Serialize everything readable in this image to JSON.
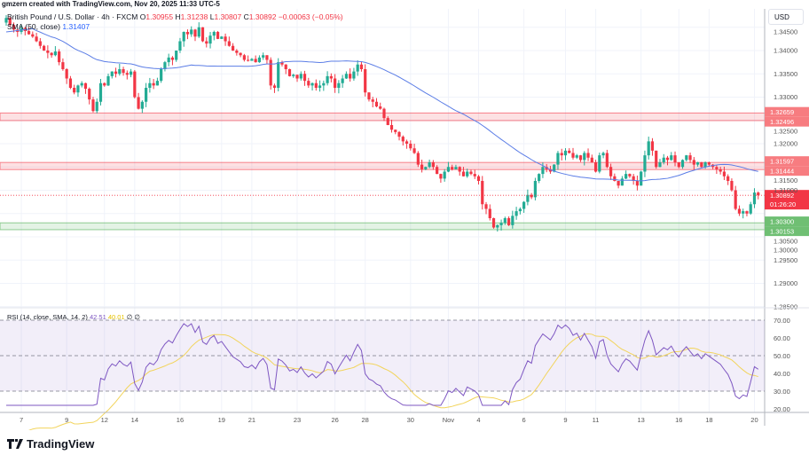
{
  "header": {
    "credit": "gmzern created with TradingView.com, Nov 20, 2025 11:33 UTC-5"
  },
  "legend": {
    "symbol": "British Pound / U.S. Dollar · 4h · FXCM",
    "o_label": "O",
    "o": "1.30955",
    "h_label": "H",
    "h": "1.31238",
    "l_label": "L",
    "l": "1.30807",
    "c_label": "C",
    "c": "1.30892",
    "change": "−0.00063 (−0.05%)"
  },
  "sma_legend": {
    "label": "SMA (50, close)",
    "value": "1.31407"
  },
  "rsi_legend": {
    "label": "RSI (14, close, SMA, 14, 2)",
    "rsi": "42.51",
    "sma": "40.01",
    "extra": "∅ ∅"
  },
  "currency": "USD",
  "footer": {
    "logo": "TradingView"
  },
  "chart_data": {
    "type": "candlestick",
    "symbol": "GBPUSD",
    "interval": "4h",
    "price_axis": {
      "ticks": [
        "1.34500",
        "1.34000",
        "1.33500",
        "1.33000",
        "1.32500",
        "1.32000",
        "1.31500",
        "1.31000",
        "1.30500",
        "1.30000",
        "1.29500",
        "1.29000",
        "1.28500"
      ],
      "range": [
        1.2835,
        1.3475
      ]
    },
    "x_labels": [
      "7",
      "9",
      "12",
      "14",
      "16",
      "19",
      "21",
      "23",
      "26",
      "28",
      "30",
      "Nov",
      "4",
      "6",
      "9",
      "11",
      "13",
      "16",
      "18",
      "20"
    ],
    "close": [
      1.347,
      1.3455,
      1.3445,
      1.344,
      1.3448,
      1.3442,
      1.3435,
      1.343,
      1.342,
      1.341,
      1.34,
      1.3395,
      1.339,
      1.3398,
      1.3375,
      1.336,
      1.334,
      1.332,
      1.331,
      1.3325,
      1.333,
      1.3318,
      1.3295,
      1.327,
      1.329,
      1.333,
      1.3325,
      1.3345,
      1.3355,
      1.335,
      1.336,
      1.3352,
      1.3348,
      1.3355,
      1.33,
      1.3275,
      1.329,
      1.332,
      1.333,
      1.3325,
      1.3335,
      1.336,
      1.3375,
      1.3385,
      1.338,
      1.34,
      1.342,
      1.344,
      1.3435,
      1.3445,
      1.343,
      1.345,
      1.342,
      1.3415,
      1.3432,
      1.344,
      1.3425,
      1.343,
      1.342,
      1.341,
      1.34,
      1.3395,
      1.339,
      1.338,
      1.3378,
      1.3382,
      1.3375,
      1.3385,
      1.339,
      1.338,
      1.3325,
      1.332,
      1.3375,
      1.337,
      1.336,
      1.3345,
      1.3348,
      1.334,
      1.335,
      1.3335,
      1.3325,
      1.333,
      1.332,
      1.3325,
      1.333,
      1.3345,
      1.334,
      1.332,
      1.333,
      1.334,
      1.335,
      1.334,
      1.3355,
      1.337,
      1.336,
      1.331,
      1.3295,
      1.329,
      1.328,
      1.3275,
      1.3255,
      1.324,
      1.323,
      1.3225,
      1.3215,
      1.3205,
      1.32,
      1.319,
      1.318,
      1.3155,
      1.3145,
      1.315,
      1.316,
      1.315,
      1.3135,
      1.3125,
      1.314,
      1.315,
      1.3145,
      1.315,
      1.314,
      1.313,
      1.314,
      1.3135,
      1.313,
      1.312,
      1.307,
      1.306,
      1.304,
      1.302,
      1.3025,
      1.303,
      1.304,
      1.3025,
      1.3045,
      1.3055,
      1.306,
      1.3075,
      1.309,
      1.3085,
      1.312,
      1.3135,
      1.315,
      1.3145,
      1.314,
      1.3155,
      1.318,
      1.3175,
      1.3185,
      1.318,
      1.317,
      1.3175,
      1.3165,
      1.318,
      1.317,
      1.316,
      1.314,
      1.3175,
      1.318,
      1.315,
      1.313,
      1.312,
      1.311,
      1.3125,
      1.3135,
      1.313,
      1.312,
      1.311,
      1.314,
      1.3175,
      1.3205,
      1.3185,
      1.315,
      1.316,
      1.317,
      1.3165,
      1.3175,
      1.316,
      1.315,
      1.3165,
      1.3175,
      1.3165,
      1.3155,
      1.316,
      1.315,
      1.316,
      1.3155,
      1.315,
      1.3145,
      1.314,
      1.313,
      1.312,
      1.31,
      1.306,
      1.305,
      1.3055,
      1.305,
      1.307,
      1.3095,
      1.30892
    ],
    "zones": [
      {
        "type": "resistance",
        "top": "1.32659",
        "bottom": "1.32496",
        "color": "#f23645"
      },
      {
        "type": "resistance",
        "top": "1.31597",
        "bottom": "1.31444",
        "color": "#f23645"
      },
      {
        "type": "support",
        "top": "1.30300",
        "bottom": "1.30153",
        "color": "#4caf50"
      }
    ],
    "last_price": "1.30892",
    "countdown": "01:26:20",
    "rsi_axis": {
      "ticks": [
        "70.00",
        "60.00",
        "50.00",
        "40.00",
        "30.00",
        "20.00"
      ],
      "range": [
        20,
        70
      ],
      "bands": [
        30,
        70
      ]
    },
    "colors": {
      "up": "#22ab94",
      "down": "#f23645",
      "sma": "#5b7de6",
      "rsi": "#7e57c2",
      "rsi_sma": "#f2d45c"
    }
  }
}
